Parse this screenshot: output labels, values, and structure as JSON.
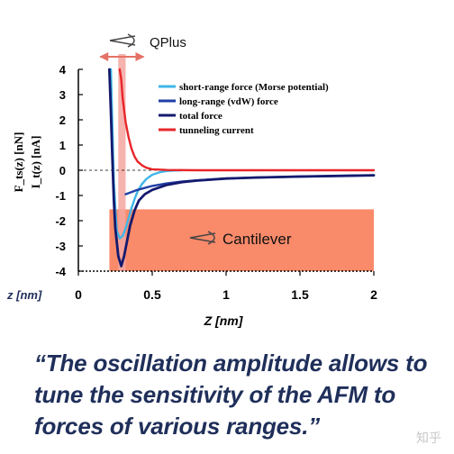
{
  "chart_data": {
    "type": "line",
    "xlim": [
      0,
      2
    ],
    "ylim": [
      -4,
      4
    ],
    "x_ticks": [
      "0",
      "0.5",
      "1",
      "1.5",
      "2"
    ],
    "y_ticks": [
      "4",
      "3",
      "2",
      "1",
      "0",
      "-1",
      "-2",
      "-3",
      "-4"
    ],
    "x_axis_prefix": "z [nm]",
    "xlabel": "Z [nm]",
    "ylabel_line1": "F_ts(z) [nN]",
    "ylabel_line2": "I_t(z) [nA]",
    "legend": {
      "placement": "top-right",
      "entries": [
        {
          "label": "short-range force (Morse potential)",
          "color": "#3fb6e8"
        },
        {
          "label": "long-range (vdW) force",
          "color": "#1f3fa6"
        },
        {
          "label": "total force",
          "color": "#141a6e"
        },
        {
          "label": "tunneling current",
          "color": "#e8262a"
        }
      ]
    },
    "series": [
      {
        "name": "short-range force (Morse potential)",
        "color": "#3fb6e8",
        "x": [
          0.22,
          0.24,
          0.26,
          0.28,
          0.3,
          0.32,
          0.34,
          0.36,
          0.38,
          0.4,
          0.43,
          0.46,
          0.5,
          0.55,
          0.6,
          0.65,
          0.7
        ],
        "y": [
          4.0,
          -0.5,
          -2.4,
          -2.7,
          -2.6,
          -2.3,
          -1.9,
          -1.5,
          -1.15,
          -0.85,
          -0.55,
          -0.35,
          -0.18,
          -0.08,
          -0.03,
          -0.01,
          0
        ]
      },
      {
        "name": "long-range (vdW) force",
        "color": "#1f3fa6",
        "x": [
          0.32,
          0.4,
          0.5,
          0.6,
          0.7,
          0.8,
          1.0,
          1.2,
          1.5,
          1.8,
          2.0
        ],
        "y": [
          -0.95,
          -0.78,
          -0.62,
          -0.52,
          -0.45,
          -0.4,
          -0.33,
          -0.29,
          -0.25,
          -0.22,
          -0.2
        ]
      },
      {
        "name": "total force",
        "color": "#141a6e",
        "x": [
          0.21,
          0.22,
          0.23,
          0.24,
          0.25,
          0.27,
          0.29,
          0.31,
          0.33,
          0.35,
          0.38,
          0.41,
          0.45,
          0.5,
          0.6,
          0.7,
          0.8,
          1.0,
          1.2,
          1.5,
          2.0
        ],
        "y": [
          4.0,
          2.3,
          0.5,
          -1.2,
          -2.3,
          -3.4,
          -3.8,
          -3.4,
          -2.8,
          -2.2,
          -1.6,
          -1.2,
          -0.95,
          -0.78,
          -0.58,
          -0.47,
          -0.41,
          -0.33,
          -0.29,
          -0.25,
          -0.2
        ]
      },
      {
        "name": "tunneling current",
        "color": "#e8262a",
        "x": [
          0.28,
          0.29,
          0.3,
          0.32,
          0.34,
          0.36,
          0.38,
          0.4,
          0.43,
          0.46,
          0.5,
          0.6,
          0.8,
          1.0,
          1.5,
          2.0
        ],
        "y": [
          4.0,
          3.6,
          2.85,
          1.9,
          1.3,
          0.85,
          0.55,
          0.35,
          0.2,
          0.1,
          0.04,
          0.01,
          0,
          0,
          0,
          0
        ]
      }
    ],
    "annotations": [
      {
        "label": "QPlus",
        "band_x": [
          0.27,
          0.32
        ],
        "color": "#f4a6a0"
      },
      {
        "label": "Cantilever",
        "band_x": [
          0.21,
          2.0
        ],
        "band_y": [
          -4.0,
          -1.55
        ],
        "color": "#f98a6a"
      }
    ]
  },
  "quote": {
    "line1": "“The oscillation amplitude allows to",
    "line2": "tune the sensitivity of the AFM to",
    "line3": "forces of various ranges.”"
  },
  "watermark": "知乎"
}
